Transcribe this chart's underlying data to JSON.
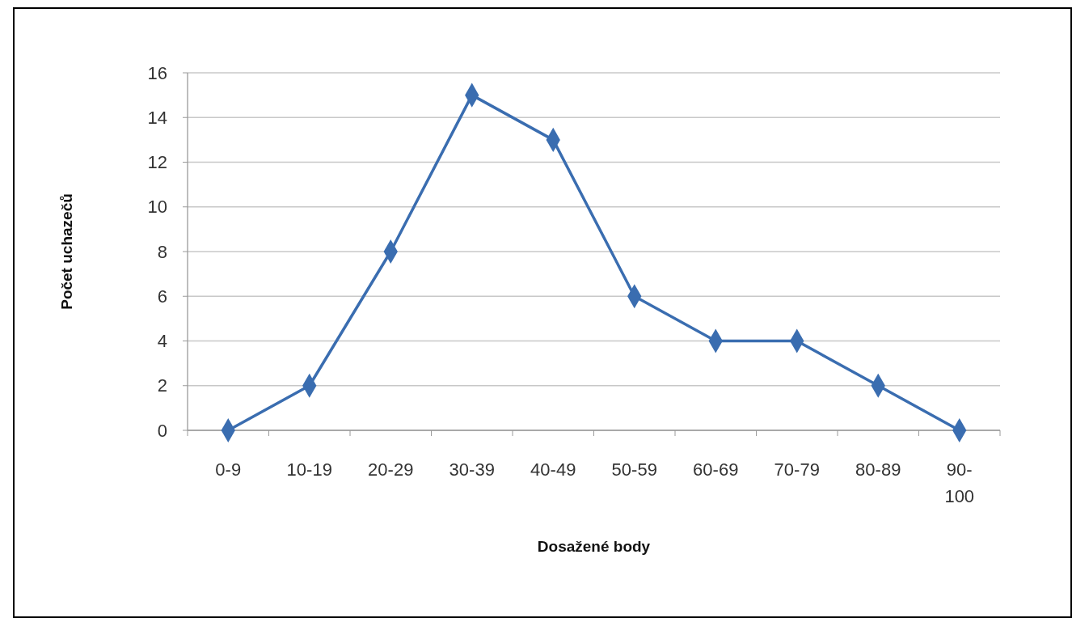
{
  "chart_data": {
    "type": "line",
    "xlabel": "Dosažené body",
    "ylabel": "Počet uchazečů",
    "categories": [
      "0-9",
      "10-19",
      "20-29",
      "30-39",
      "40-49",
      "50-59",
      "60-69",
      "70-79",
      "80-89",
      "90-100"
    ],
    "series": [
      {
        "color": "#3a6db0",
        "values": [
          0,
          2,
          8,
          15,
          13,
          6,
          4,
          4,
          2,
          0
        ]
      }
    ],
    "ylim": [
      0,
      16
    ],
    "yticks": [
      0,
      2,
      4,
      6,
      8,
      10,
      12,
      14,
      16
    ],
    "grid": "y",
    "marker": "diamond",
    "line_style": "solid"
  }
}
